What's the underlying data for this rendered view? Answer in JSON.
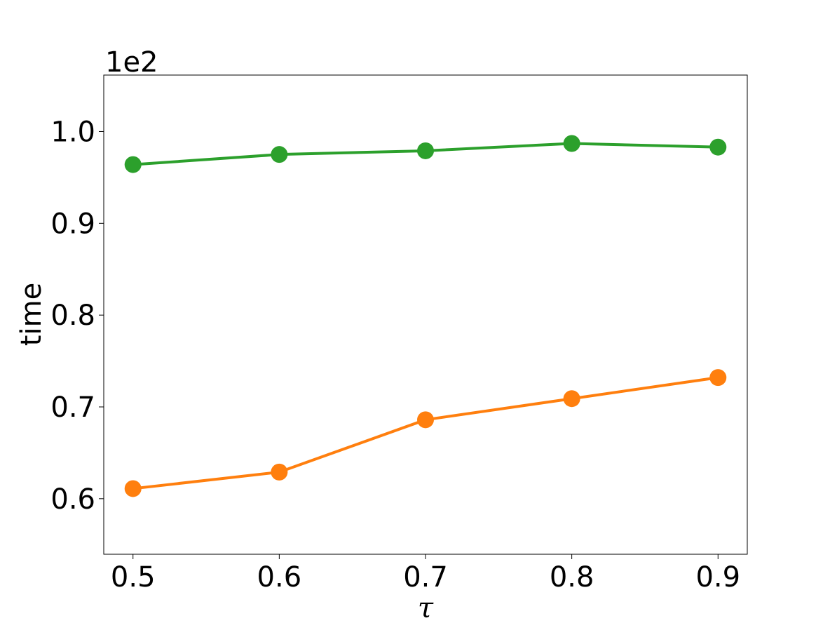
{
  "chart_data": {
    "type": "line",
    "title": "",
    "xlabel": "τ",
    "ylabel": "time",
    "y_offset_label": "1e2",
    "x": [
      0.5,
      0.6,
      0.7,
      0.8,
      0.9
    ],
    "x_ticks": [
      "0.5",
      "0.6",
      "0.7",
      "0.8",
      "0.9"
    ],
    "y_ticks": [
      "0.6",
      "0.7",
      "0.8",
      "0.9",
      "1.0"
    ],
    "y_tick_values": [
      0.6,
      0.7,
      0.8,
      0.9,
      1.0
    ],
    "xlim": [
      0.48,
      0.92
    ],
    "ylim": [
      0.5395,
      1.0615
    ],
    "grid": false,
    "legend": "none",
    "series": [
      {
        "color": "#2ca02c",
        "values": [
          0.964,
          0.975,
          0.979,
          0.987,
          0.983
        ]
      },
      {
        "color": "#ff7f0e",
        "values": [
          0.611,
          0.629,
          0.686,
          0.709,
          0.732
        ]
      }
    ]
  }
}
